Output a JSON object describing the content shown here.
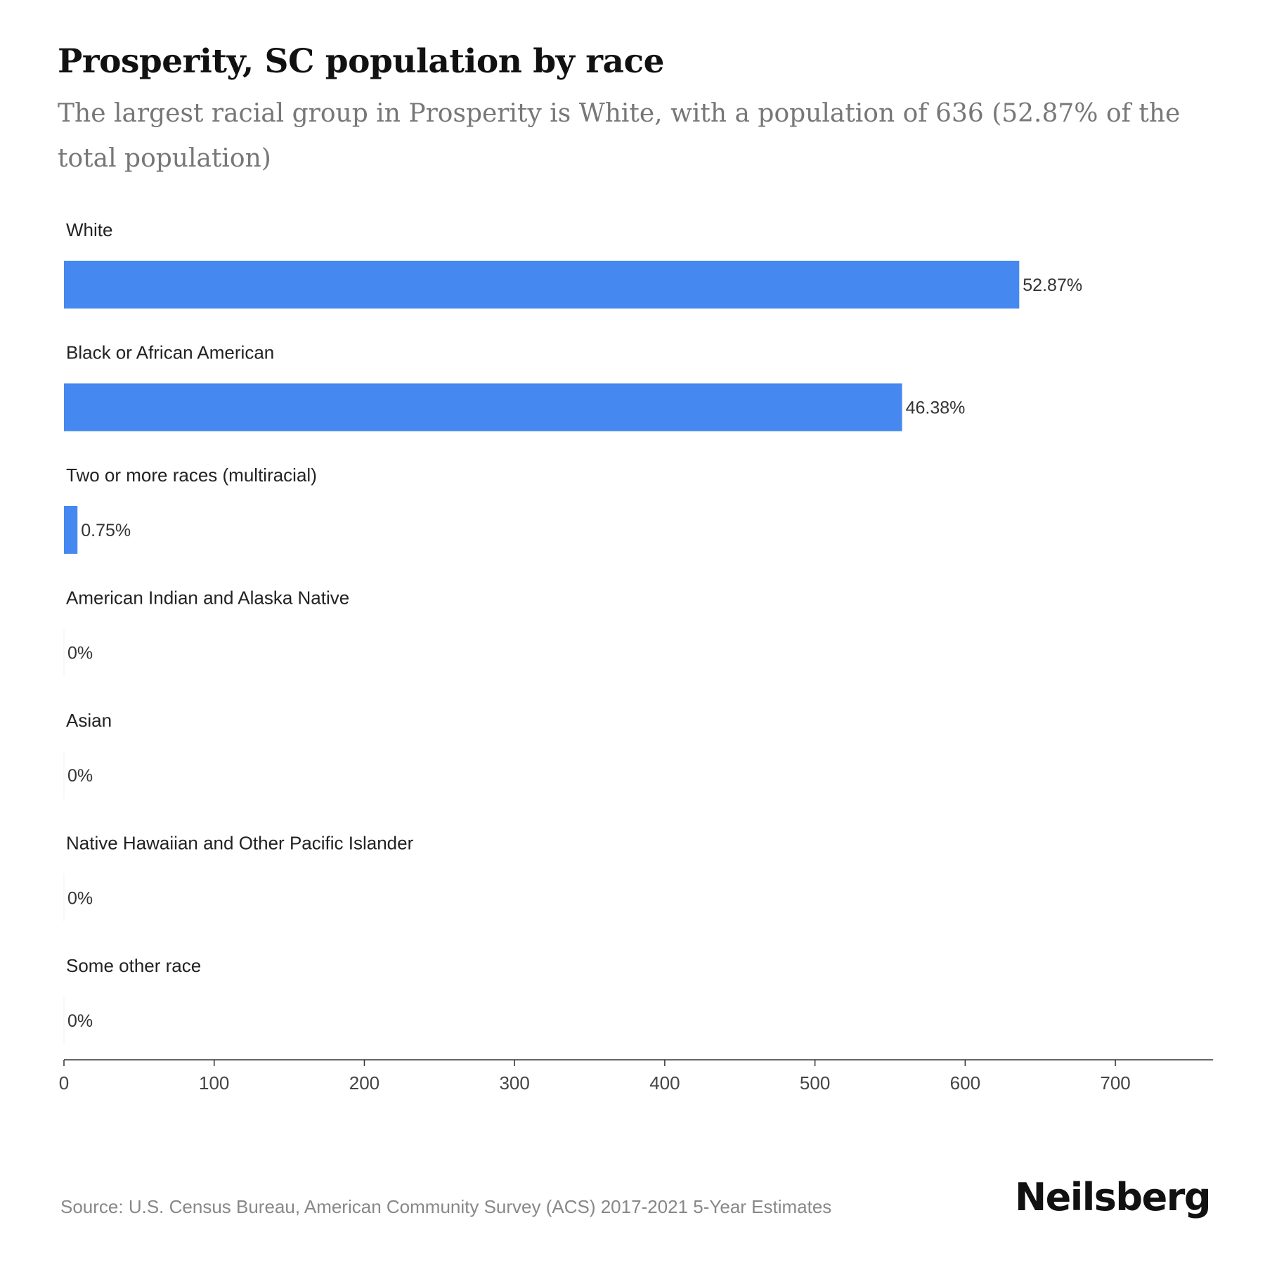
{
  "header": {
    "title": "Prosperity, SC population by race",
    "subtitle": "The largest racial group in Prosperity is White, with a population of 636 (52.87% of the total population)"
  },
  "footer": {
    "source": "Source: U.S. Census Bureau, American Community Survey (ACS) 2017-2021 5-Year Estimates",
    "brand": "Neilsberg"
  },
  "colors": {
    "bar": "#4589f0",
    "axis": "#333333",
    "title": "#111111",
    "subtitle": "#777777",
    "source": "#888888"
  },
  "chart_data": {
    "type": "bar",
    "orientation": "horizontal",
    "categories": [
      "White",
      "Black or African American",
      "Two or more races (multiracial)",
      "American Indian and Alaska Native",
      "Asian",
      "Native Hawaiian and Other Pacific Islander",
      "Some other race"
    ],
    "values": [
      636,
      558,
      9,
      0,
      0,
      0,
      0
    ],
    "data_labels": [
      "52.87%",
      "46.38%",
      "0.75%",
      "0%",
      "0%",
      "0%",
      "0%"
    ],
    "xlim": [
      0,
      765
    ],
    "xticks": [
      0,
      100,
      200,
      300,
      400,
      500,
      600,
      700
    ],
    "grid": false,
    "legend": "none"
  }
}
